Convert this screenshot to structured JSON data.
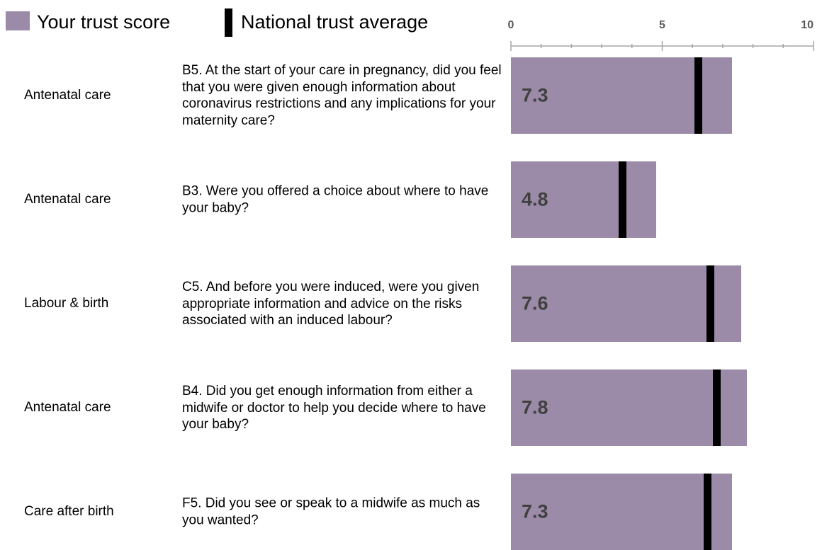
{
  "legend": {
    "trust_label": "Your trust score",
    "national_label": "National trust average"
  },
  "colors": {
    "bar": "#9b8ba8",
    "marker": "#000000",
    "axis": "#a6a6a6",
    "tick_label": "#595959"
  },
  "chart_data": {
    "type": "bar",
    "orientation": "horizontal",
    "xlim": [
      0,
      10
    ],
    "major_ticks": [
      0,
      5,
      10
    ],
    "minor_tick_step": 1,
    "series": [
      {
        "name": "Your trust score",
        "values": [
          7.3,
          4.8,
          7.6,
          7.8,
          7.3
        ]
      },
      {
        "name": "National trust average",
        "values": [
          6.2,
          3.7,
          6.6,
          6.8,
          6.5
        ]
      }
    ],
    "rows": [
      {
        "category": "Antenatal care",
        "question": "B5. At the start of your care in pregnancy, did you feel that you were given enough information about coronavirus restrictions and any implications for your maternity care?",
        "value": 7.3,
        "value_label": "7.3",
        "national": 6.2
      },
      {
        "category": "Antenatal care",
        "question": "B3. Were you offered a choice about where to have your baby?",
        "value": 4.8,
        "value_label": "4.8",
        "national": 3.7
      },
      {
        "category": "Labour & birth",
        "question": "C5. And before you were induced, were you given appropriate information and advice on the risks associated with an induced labour?",
        "value": 7.6,
        "value_label": "7.6",
        "national": 6.6
      },
      {
        "category": "Antenatal care",
        "question": "B4. Did you get enough information from either a midwife or doctor to help you decide where to have your baby?",
        "value": 7.8,
        "value_label": "7.8",
        "national": 6.8
      },
      {
        "category": "Care after birth",
        "question": "F5. Did you see or speak to a midwife as much as you wanted?",
        "value": 7.3,
        "value_label": "7.3",
        "national": 6.5
      }
    ]
  }
}
